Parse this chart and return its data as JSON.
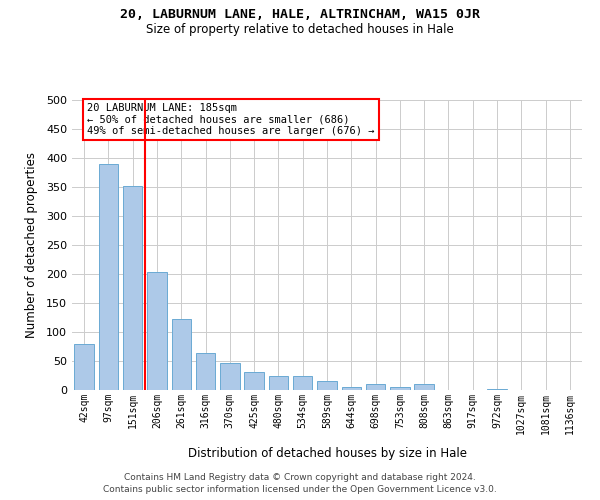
{
  "title": "20, LABURNUM LANE, HALE, ALTRINCHAM, WA15 0JR",
  "subtitle": "Size of property relative to detached houses in Hale",
  "xlabel": "Distribution of detached houses by size in Hale",
  "ylabel": "Number of detached properties",
  "bar_labels": [
    "42sqm",
    "97sqm",
    "151sqm",
    "206sqm",
    "261sqm",
    "316sqm",
    "370sqm",
    "425sqm",
    "480sqm",
    "534sqm",
    "589sqm",
    "644sqm",
    "698sqm",
    "753sqm",
    "808sqm",
    "863sqm",
    "917sqm",
    "972sqm",
    "1027sqm",
    "1081sqm",
    "1136sqm"
  ],
  "bar_values": [
    80,
    390,
    352,
    204,
    122,
    63,
    46,
    31,
    24,
    25,
    16,
    6,
    10,
    5,
    10,
    0,
    0,
    1,
    0,
    0,
    0
  ],
  "bar_color": "#adc9e8",
  "bar_edgecolor": "#6aaad4",
  "ylim": [
    0,
    500
  ],
  "yticks": [
    0,
    50,
    100,
    150,
    200,
    250,
    300,
    350,
    400,
    450,
    500
  ],
  "red_line_x": 2.5,
  "annotation_title": "20 LABURNUM LANE: 185sqm",
  "annotation_line1": "← 50% of detached houses are smaller (686)",
  "annotation_line2": "49% of semi-detached houses are larger (676) →",
  "footer1": "Contains HM Land Registry data © Crown copyright and database right 2024.",
  "footer2": "Contains public sector information licensed under the Open Government Licence v3.0.",
  "background_color": "#ffffff",
  "grid_color": "#cccccc"
}
